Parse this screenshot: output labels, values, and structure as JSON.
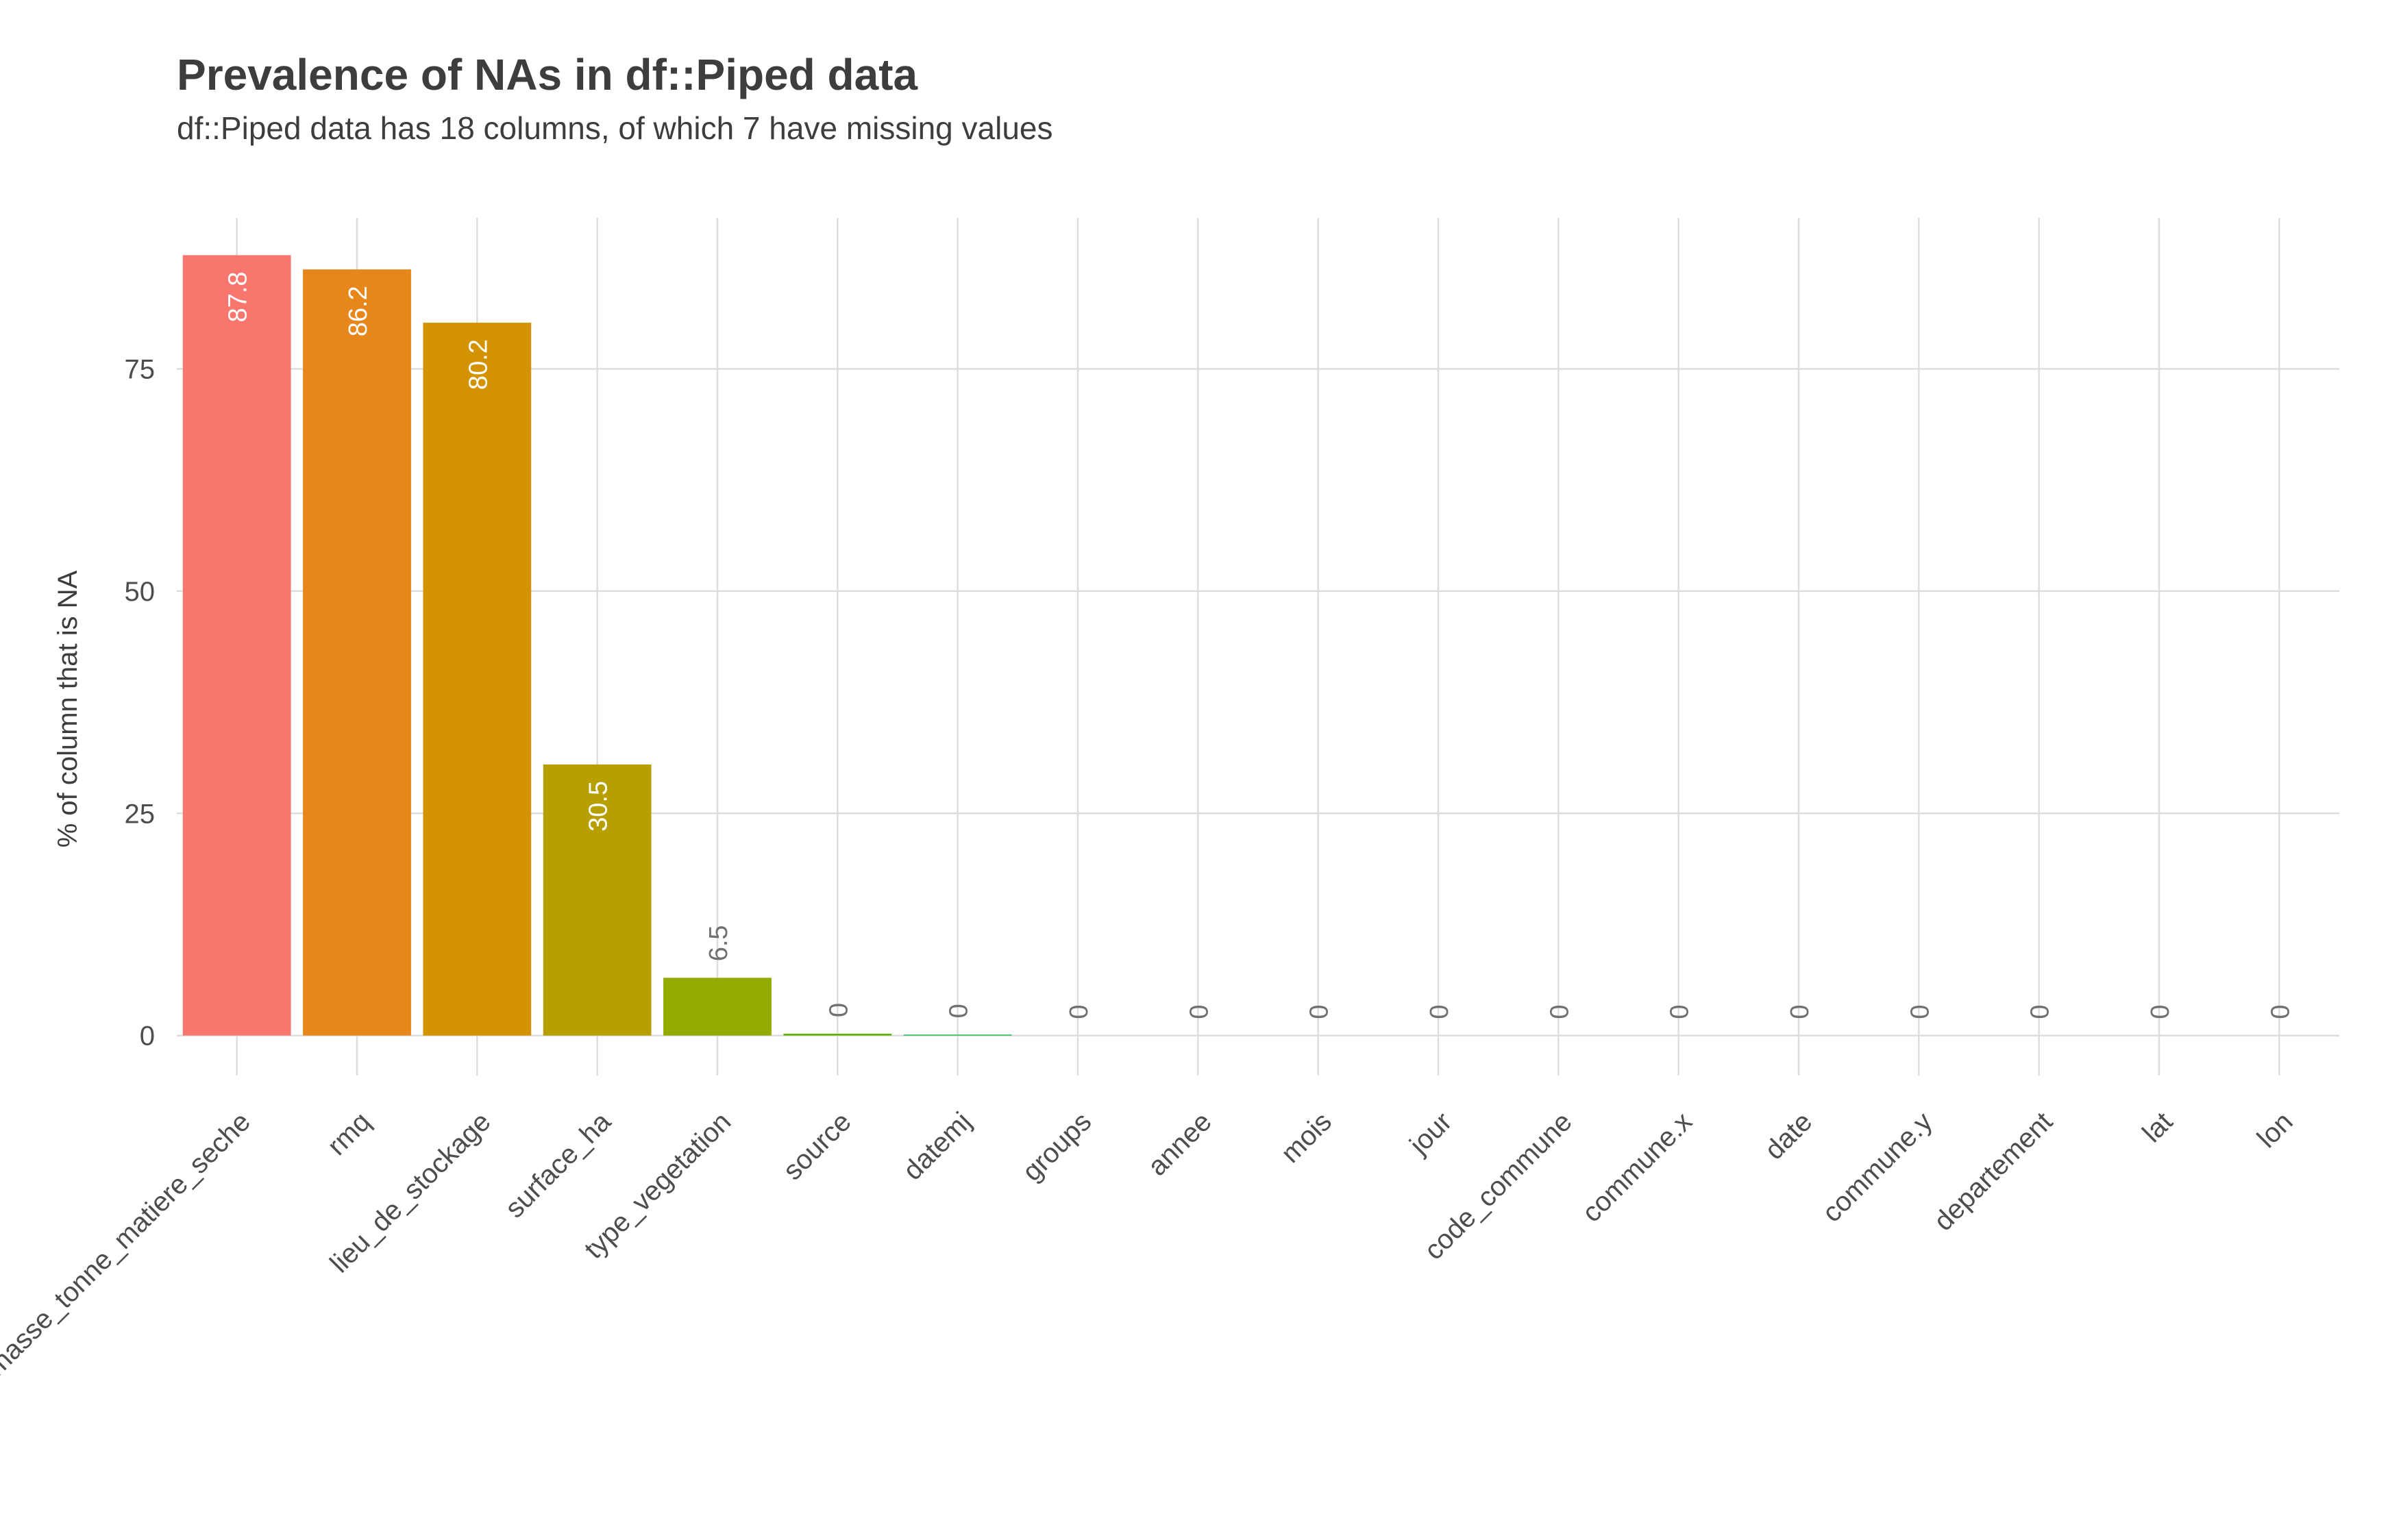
{
  "chart_data": {
    "type": "bar",
    "title": "Prevalence of NAs in df::Piped data",
    "subtitle": "df::Piped data has 18 columns, of which 7 have missing values",
    "ylabel": "% of column that is NA",
    "xlabel": "",
    "ylim": [
      -4.5,
      92
    ],
    "yticks": [
      0,
      25,
      50,
      75
    ],
    "grid": true,
    "categories": [
      "biomasse_tonne_matiere_seche",
      "rmq",
      "lieu_de_stockage",
      "surface_ha",
      "type_vegetation",
      "source",
      "datemj",
      "groups",
      "annee",
      "mois",
      "jour",
      "code_commune",
      "commune.x",
      "date",
      "commune.y",
      "departement",
      "lat",
      "lon"
    ],
    "values": [
      87.8,
      86.2,
      80.2,
      30.5,
      6.5,
      0.2,
      0.1,
      0,
      0,
      0,
      0,
      0,
      0,
      0,
      0,
      0,
      0,
      0
    ],
    "labels": [
      "87.8",
      "86.2",
      "80.2",
      "30.5",
      "6.5",
      "0",
      "0",
      "0",
      "0",
      "0",
      "0",
      "0",
      "0",
      "0",
      "0",
      "0",
      "0",
      "0"
    ],
    "colors": [
      "#F8766D",
      "#E7861B",
      "#D39200",
      "#B79F00",
      "#93AA00",
      "#5EB300",
      "#00BA38",
      "#00BF74",
      "#00C19F",
      "#00BFC4",
      "#00B9E3",
      "#00ADFA",
      "#619CFF",
      "#AE87FF",
      "#DB72FB",
      "#F564E3",
      "#FF61C3",
      "#FF6C91"
    ]
  }
}
